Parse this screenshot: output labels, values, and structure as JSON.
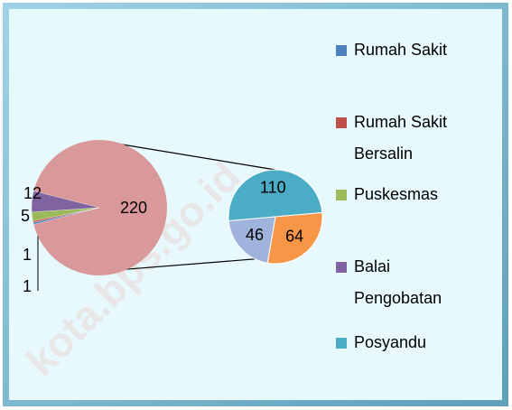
{
  "chart_data": {
    "type": "pie_of_pie",
    "categories": [
      "Rumah Sakit",
      "Rumah Sakit Bersalin",
      "Puskesmas",
      "Balai Pengobatan",
      "Posyandu",
      null,
      null
    ],
    "values": [
      1,
      1,
      5,
      12,
      110,
      64,
      46
    ],
    "colors": [
      "#4f81bd",
      "#c0504d",
      "#9bbb59",
      "#8064a2",
      "#4bacc6",
      "#f79646",
      "#9fb3dc"
    ],
    "secondary": [
      4,
      5,
      6
    ],
    "other_value": 220,
    "other_color": "#d9999a",
    "legend": "right",
    "watermark": "kota.bps.go.id"
  }
}
